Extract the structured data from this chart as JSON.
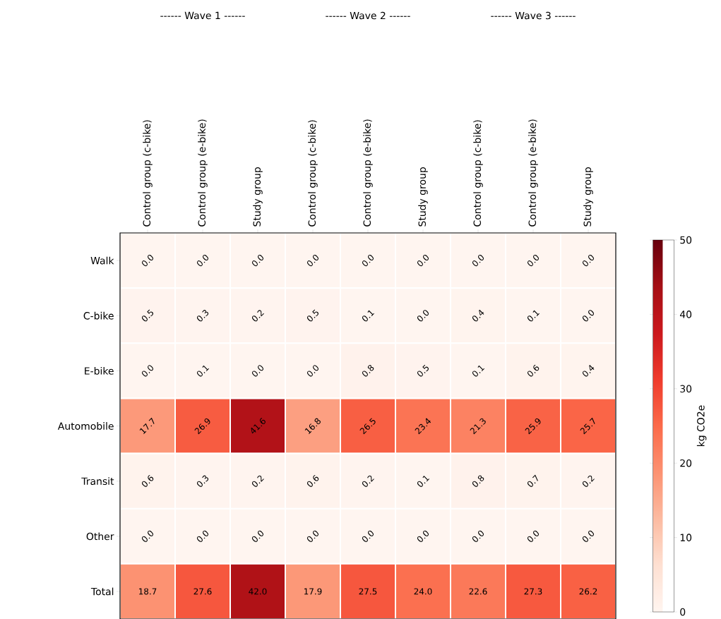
{
  "chart_data": {
    "type": "heatmap",
    "annotations": [
      "------ Wave 1 ------",
      "------ Wave 2 ------",
      "------ Wave 3 ------"
    ],
    "categories": [
      "Control group (c-bike)",
      "Control group (e-bike)",
      "Study group",
      "Control group (c-bike)",
      "Control group (e-bike)",
      "Study group",
      "Control group (c-bike)",
      "Control group (e-bike)",
      "Study group"
    ],
    "y_categories": [
      "Walk",
      "C-bike",
      "E-bike",
      "Automobile",
      "Transit",
      "Other",
      "Total"
    ],
    "cells": [
      [
        0.0,
        0.0,
        0.0,
        0.0,
        0.0,
        0.0,
        0.0,
        0.0,
        0.0
      ],
      [
        0.5,
        0.3,
        0.2,
        0.5,
        0.1,
        0.0,
        0.4,
        0.1,
        0.0
      ],
      [
        0.0,
        0.1,
        0.0,
        0.0,
        0.8,
        0.5,
        0.1,
        0.6,
        0.4
      ],
      [
        17.7,
        26.9,
        41.6,
        16.8,
        26.5,
        23.4,
        21.3,
        25.9,
        25.7
      ],
      [
        0.6,
        0.3,
        0.2,
        0.6,
        0.2,
        0.1,
        0.8,
        0.7,
        0.2
      ],
      [
        0.0,
        0.0,
        0.0,
        0.0,
        0.0,
        0.0,
        0.0,
        0.0,
        0.0
      ],
      [
        18.7,
        27.6,
        42.0,
        17.9,
        27.5,
        24.0,
        22.6,
        27.3,
        26.2
      ]
    ],
    "cell_labels": [
      [
        "0.0",
        "0.0",
        "0.0",
        "0.0",
        "0.0",
        "0.0",
        "0.0",
        "0.0",
        "0.0"
      ],
      [
        "0.5",
        "0.3",
        "0.2",
        "0.5",
        "0.1",
        "0.0",
        "0.4",
        "0.1",
        "0.0"
      ],
      [
        "0.0",
        "0.1",
        "0.0",
        "0.0",
        "0.8",
        "0.5",
        "0.1",
        "0.6",
        "0.4"
      ],
      [
        "17.7",
        "26.9",
        "41.6",
        "16.8",
        "26.5",
        "23.4",
        "21.3",
        "25.9",
        "25.7"
      ],
      [
        "0.6",
        "0.3",
        "0.2",
        "0.6",
        "0.2",
        "0.1",
        "0.8",
        "0.7",
        "0.2"
      ],
      [
        "0.0",
        "0.0",
        "0.0",
        "0.0",
        "0.0",
        "0.0",
        "0.0",
        "0.0",
        "0.0"
      ],
      [
        "18.7",
        "27.6",
        "42.0",
        "17.9",
        "27.5",
        "24.0",
        "22.6",
        "27.3",
        "26.2"
      ]
    ],
    "clabel": "kg CO2e",
    "clim": [
      0,
      50
    ],
    "cticks": [
      0,
      10,
      20,
      30,
      40,
      50
    ]
  }
}
